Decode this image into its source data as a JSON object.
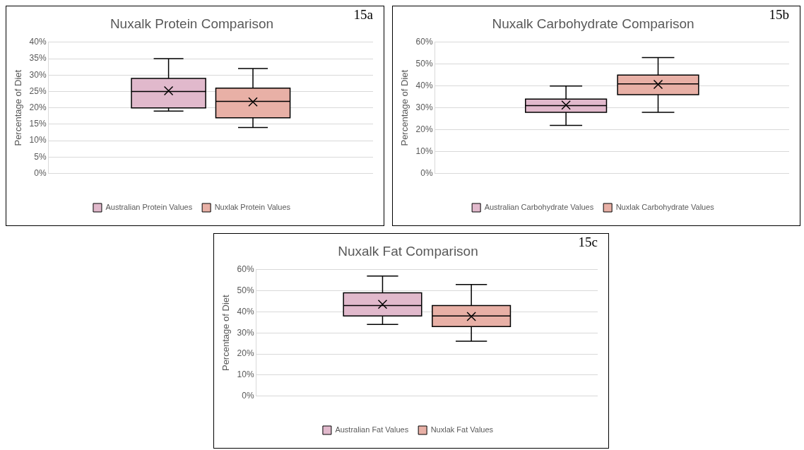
{
  "chart_data": [
    {
      "type": "box",
      "title": "Nuxalk Protein Comparison",
      "ylabel": "Percentage of Diet",
      "categories": [
        null
      ],
      "series": [
        {
          "name": "Australian Protein Values",
          "color": "#e1b9cc",
          "boxes": [
            {
              "low": 19,
              "q1": 20,
              "median": 25,
              "q3": 29,
              "high": 35,
              "mean": 25.2
            }
          ]
        },
        {
          "name": "Nuxlak Protein Values",
          "color": "#e8b0a6",
          "boxes": [
            {
              "low": 14,
              "q1": 17,
              "median": 22,
              "q3": 26,
              "high": 32,
              "mean": 21.8
            }
          ]
        }
      ],
      "ylim": [
        0,
        40
      ],
      "yticks": [
        {
          "value": 0,
          "label": "0%"
        },
        {
          "value": 5,
          "label": "5%"
        },
        {
          "value": 10,
          "label": "10%"
        },
        {
          "value": 15,
          "label": "15%"
        },
        {
          "value": 20,
          "label": "20%"
        },
        {
          "value": 25,
          "label": "25%"
        },
        {
          "value": 30,
          "label": "30%"
        },
        {
          "value": 35,
          "label": "35%"
        },
        {
          "value": 40,
          "label": "40%"
        }
      ],
      "grid": "y",
      "legend": "bottom",
      "marker": "cross",
      "annotations": [
        "15a"
      ]
    },
    {
      "type": "box",
      "title": "Nuxalk Carbohydrate Comparison",
      "ylabel": "Percentage of Diet",
      "categories": [
        null
      ],
      "series": [
        {
          "name": "Australian Carbohydrate Values",
          "color": "#e1b9cc",
          "boxes": [
            {
              "low": 22,
              "q1": 28,
              "median": 31,
              "q3": 34,
              "high": 40,
              "mean": 31.3
            }
          ]
        },
        {
          "name": "Nuxlak Carbohydrate Values",
          "color": "#e8b0a6",
          "boxes": [
            {
              "low": 28,
              "q1": 36,
              "median": 41,
              "q3": 45,
              "high": 53,
              "mean": 40.7
            }
          ]
        }
      ],
      "ylim": [
        0,
        60
      ],
      "yticks": [
        {
          "value": 0,
          "label": "0%"
        },
        {
          "value": 10,
          "label": "10%"
        },
        {
          "value": 20,
          "label": "20%"
        },
        {
          "value": 30,
          "label": "30%"
        },
        {
          "value": 40,
          "label": "40%"
        },
        {
          "value": 50,
          "label": "50%"
        },
        {
          "value": 60,
          "label": "60%"
        }
      ],
      "grid": "y",
      "legend": "bottom",
      "marker": "cross",
      "annotations": [
        "15b"
      ]
    },
    {
      "type": "box",
      "title": "Nuxalk Fat Comparison",
      "ylabel": "Percentage of Diet",
      "categories": [
        null
      ],
      "series": [
        {
          "name": "Australian Fat Values",
          "color": "#e1b9cc",
          "boxes": [
            {
              "low": 34,
              "q1": 38,
              "median": 43,
              "q3": 49,
              "high": 57,
              "mean": 43.6
            }
          ]
        },
        {
          "name": "Nuxlak Fat Values",
          "color": "#e8b0a6",
          "boxes": [
            {
              "low": 26,
              "q1": 33,
              "median": 38,
              "q3": 43,
              "high": 53,
              "mean": 37.8
            }
          ]
        }
      ],
      "ylim": [
        0,
        60
      ],
      "yticks": [
        {
          "value": 0,
          "label": "0%"
        },
        {
          "value": 10,
          "label": "10%"
        },
        {
          "value": 20,
          "label": "20%"
        },
        {
          "value": 30,
          "label": "30%"
        },
        {
          "value": 40,
          "label": "40%"
        },
        {
          "value": 50,
          "label": "50%"
        },
        {
          "value": 60,
          "label": "60%"
        }
      ],
      "grid": "y",
      "legend": "bottom",
      "marker": "cross",
      "annotations": [
        "15c"
      ]
    }
  ]
}
